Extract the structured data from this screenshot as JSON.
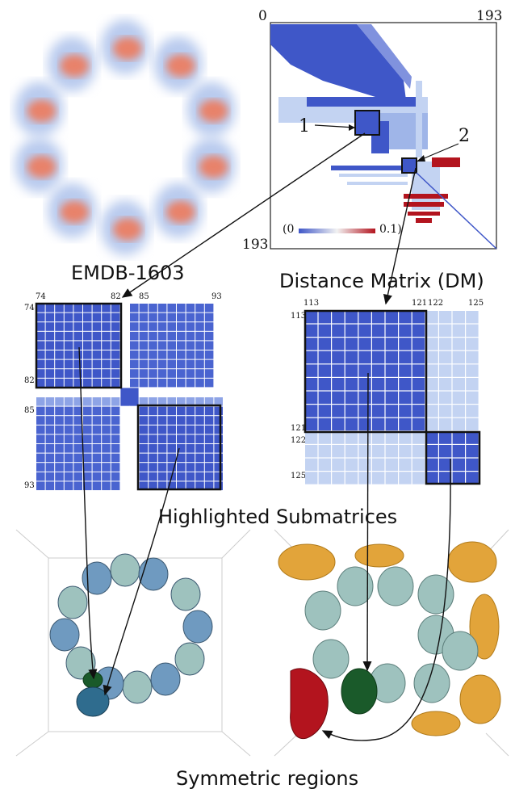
{
  "captions": {
    "emdb": "EMDB-1603",
    "dm": "Distance Matrix (DM)",
    "sub": "Highlighted Submatrices",
    "sym": "Symmetric regions"
  },
  "dm_axis": {
    "start": "0",
    "end": "193",
    "end_left": "193"
  },
  "dm_labels": {
    "one": "1",
    "two": "2"
  },
  "colorbar": {
    "min": "(0",
    "max": "0.1)"
  },
  "sub_left": {
    "top_a": "74",
    "top_b": "82",
    "top_c": "85",
    "top_d": "93",
    "left_a": "74",
    "left_b": "82",
    "left_c": "85",
    "left_d": "93"
  },
  "sub_right": {
    "top_a": "113",
    "top_b": "121",
    "top_c": "122",
    "top_d": "125",
    "left_a": "113",
    "left_b": "121",
    "left_c": "122",
    "left_d": "125"
  },
  "colors": {
    "dark_blue": "#3f57c8",
    "light_blue": "#c3d3f2",
    "red": "#b3141e",
    "teal": "#9ec2be",
    "steel": "#6f9ac0",
    "green": "#1a5a2a",
    "gold": "#e2a43a"
  }
}
